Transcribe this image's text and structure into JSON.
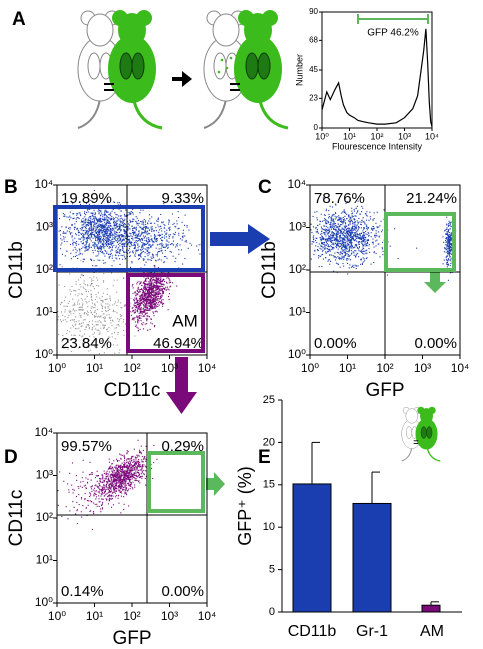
{
  "chart_data": [
    {
      "type": "line",
      "panel_label": "A",
      "x_label": "Flourescence Intensity",
      "y_label": "Number",
      "gate_label": "GFP 46.2%",
      "gate_color": "#5cb85c",
      "color": "#000000",
      "log_x": true,
      "x": [
        1,
        1.5,
        2,
        3,
        4,
        5,
        6,
        8,
        10,
        15,
        20,
        30,
        50,
        100,
        200,
        500,
        1000,
        2000,
        3000,
        4000,
        5000,
        6000,
        7000,
        8000,
        9000,
        10000
      ],
      "values": [
        14,
        28,
        22,
        30,
        35,
        25,
        18,
        12,
        10,
        8,
        6,
        5,
        4,
        3,
        3,
        4,
        8,
        15,
        25,
        45,
        60,
        77,
        50,
        20,
        5,
        1
      ],
      "xlim": [
        1,
        10000
      ],
      "ylim": [
        0,
        90
      ],
      "xticks": [
        {
          "value": 1,
          "label": "10⁰"
        },
        {
          "value": 10,
          "label": "10¹"
        },
        {
          "value": 100,
          "label": "10²"
        },
        {
          "value": 1000,
          "label": "10³"
        },
        {
          "value": 10000,
          "label": "10⁴"
        }
      ],
      "yticks": [
        0,
        23,
        45,
        68,
        90
      ]
    },
    {
      "type": "flow",
      "panel_label": "B",
      "x_label": "CD11c",
      "y_label": "CD11b",
      "gate_label": "AM",
      "log_scale": true,
      "quadrant_labels": [
        "19.89%",
        "9.33%",
        "23.84%",
        "46.94%"
      ],
      "xlim": [
        1,
        10000
      ],
      "ylim": [
        1,
        10000
      ],
      "xticks": [
        {
          "value": 1,
          "label": "10⁰"
        },
        {
          "value": 10,
          "label": "10¹"
        },
        {
          "value": 100,
          "label": "10²"
        },
        {
          "value": 1000,
          "label": "10³"
        },
        {
          "value": 10000,
          "label": "10⁴"
        }
      ],
      "yticks": [
        {
          "value": 1,
          "label": "10⁰"
        },
        {
          "value": 10,
          "label": "10¹"
        },
        {
          "value": 100,
          "label": "10²"
        },
        {
          "value": 1000,
          "label": "10³"
        },
        {
          "value": 10000,
          "label": "10⁴"
        }
      ]
    },
    {
      "type": "flow",
      "panel_label": "C",
      "x_label": "GFP",
      "y_label": "CD11b",
      "log_scale": true,
      "quadrant_labels": [
        "78.76%",
        "21.24%",
        "0.00%",
        "0.00%"
      ],
      "xlim": [
        1,
        10000
      ],
      "ylim": [
        1,
        10000
      ],
      "xticks": [
        {
          "value": 1,
          "label": "10⁰"
        },
        {
          "value": 10,
          "label": "10¹"
        },
        {
          "value": 100,
          "label": "10²"
        },
        {
          "value": 1000,
          "label": "10³"
        },
        {
          "value": 10000,
          "label": "10⁴"
        }
      ],
      "yticks": [
        {
          "value": 1,
          "label": "10⁰"
        },
        {
          "value": 10,
          "label": "10¹"
        },
        {
          "value": 100,
          "label": "10²"
        },
        {
          "value": 1000,
          "label": "10³"
        },
        {
          "value": 10000,
          "label": "10⁴"
        }
      ]
    },
    {
      "type": "flow",
      "panel_label": "D",
      "x_label": "GFP",
      "y_label": "CD11c",
      "log_scale": true,
      "quadrant_labels": [
        "99.57%",
        "0.29%",
        "0.14%",
        "0.00%"
      ],
      "xlim": [
        1,
        10000
      ],
      "ylim": [
        1,
        10000
      ],
      "xticks": [
        {
          "value": 1,
          "label": "10⁰"
        },
        {
          "value": 10,
          "label": "10¹"
        },
        {
          "value": 100,
          "label": "10²"
        },
        {
          "value": 1000,
          "label": "10³"
        },
        {
          "value": 10000,
          "label": "10⁴"
        }
      ],
      "yticks": [
        {
          "value": 1,
          "label": "10⁰"
        },
        {
          "value": 10,
          "label": "10¹"
        },
        {
          "value": 100,
          "label": "10²"
        },
        {
          "value": 1000,
          "label": "10³"
        },
        {
          "value": 10000,
          "label": "10⁴"
        }
      ]
    },
    {
      "type": "bar",
      "panel_label": "E",
      "y_label": "GFP⁺ (%)",
      "categories": [
        "CD11b",
        "Gr-1",
        "AM"
      ],
      "values": [
        15.1,
        12.8,
        0.8
      ],
      "errors": [
        4.9,
        3.7,
        0.4
      ],
      "colors": [
        "#1a3db0",
        "#1a3db0",
        "#7a0a7a"
      ],
      "ylim": [
        0,
        25
      ],
      "yticks": [
        0,
        5,
        10,
        15,
        20,
        25
      ]
    }
  ]
}
